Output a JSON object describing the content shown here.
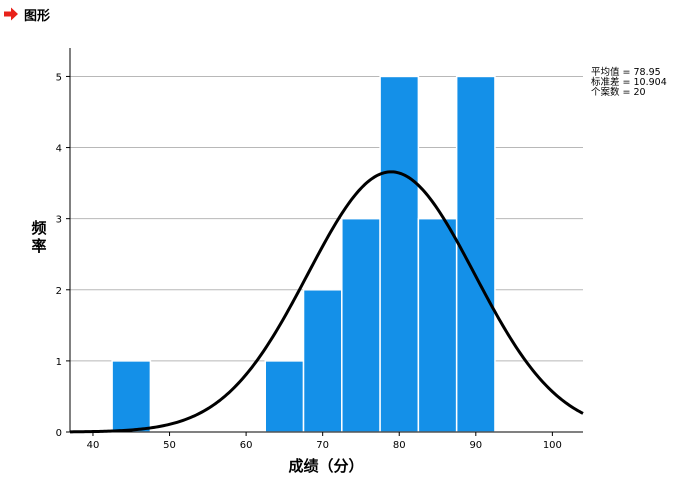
{
  "section": {
    "title": "图形",
    "icon": "red-arrow-icon",
    "icon_color": "#e8221a"
  },
  "chart_data": {
    "type": "bar",
    "title": "",
    "xlabel": "成绩（分）",
    "ylabel": "频率",
    "bins": [
      {
        "x0": 42.5,
        "x1": 47.5,
        "count": 1
      },
      {
        "x0": 62.5,
        "x1": 67.5,
        "count": 1
      },
      {
        "x0": 67.5,
        "x1": 72.5,
        "count": 2
      },
      {
        "x0": 72.5,
        "x1": 77.5,
        "count": 3
      },
      {
        "x0": 77.5,
        "x1": 82.5,
        "count": 5
      },
      {
        "x0": 82.5,
        "x1": 87.5,
        "count": 3
      },
      {
        "x0": 87.5,
        "x1": 92.5,
        "count": 5
      }
    ],
    "xlim": [
      37,
      104
    ],
    "ylim": [
      0,
      5.4
    ],
    "xticks": [
      40,
      50,
      60,
      70,
      80,
      90,
      100
    ],
    "yticks": [
      0,
      1,
      2,
      3,
      4,
      5
    ],
    "grid_y": true,
    "bar_color": "#1490e8",
    "curve": {
      "type": "normal",
      "mean": 78.95,
      "sd": 10.904,
      "n": 20,
      "bin_width": 5,
      "color": "#000000"
    },
    "stats": [
      {
        "label": "平均值",
        "value": "78.95"
      },
      {
        "label": "标准差",
        "value": "10.904"
      },
      {
        "label": "个案数",
        "value": "20"
      }
    ],
    "stats_placement": "top-right"
  }
}
